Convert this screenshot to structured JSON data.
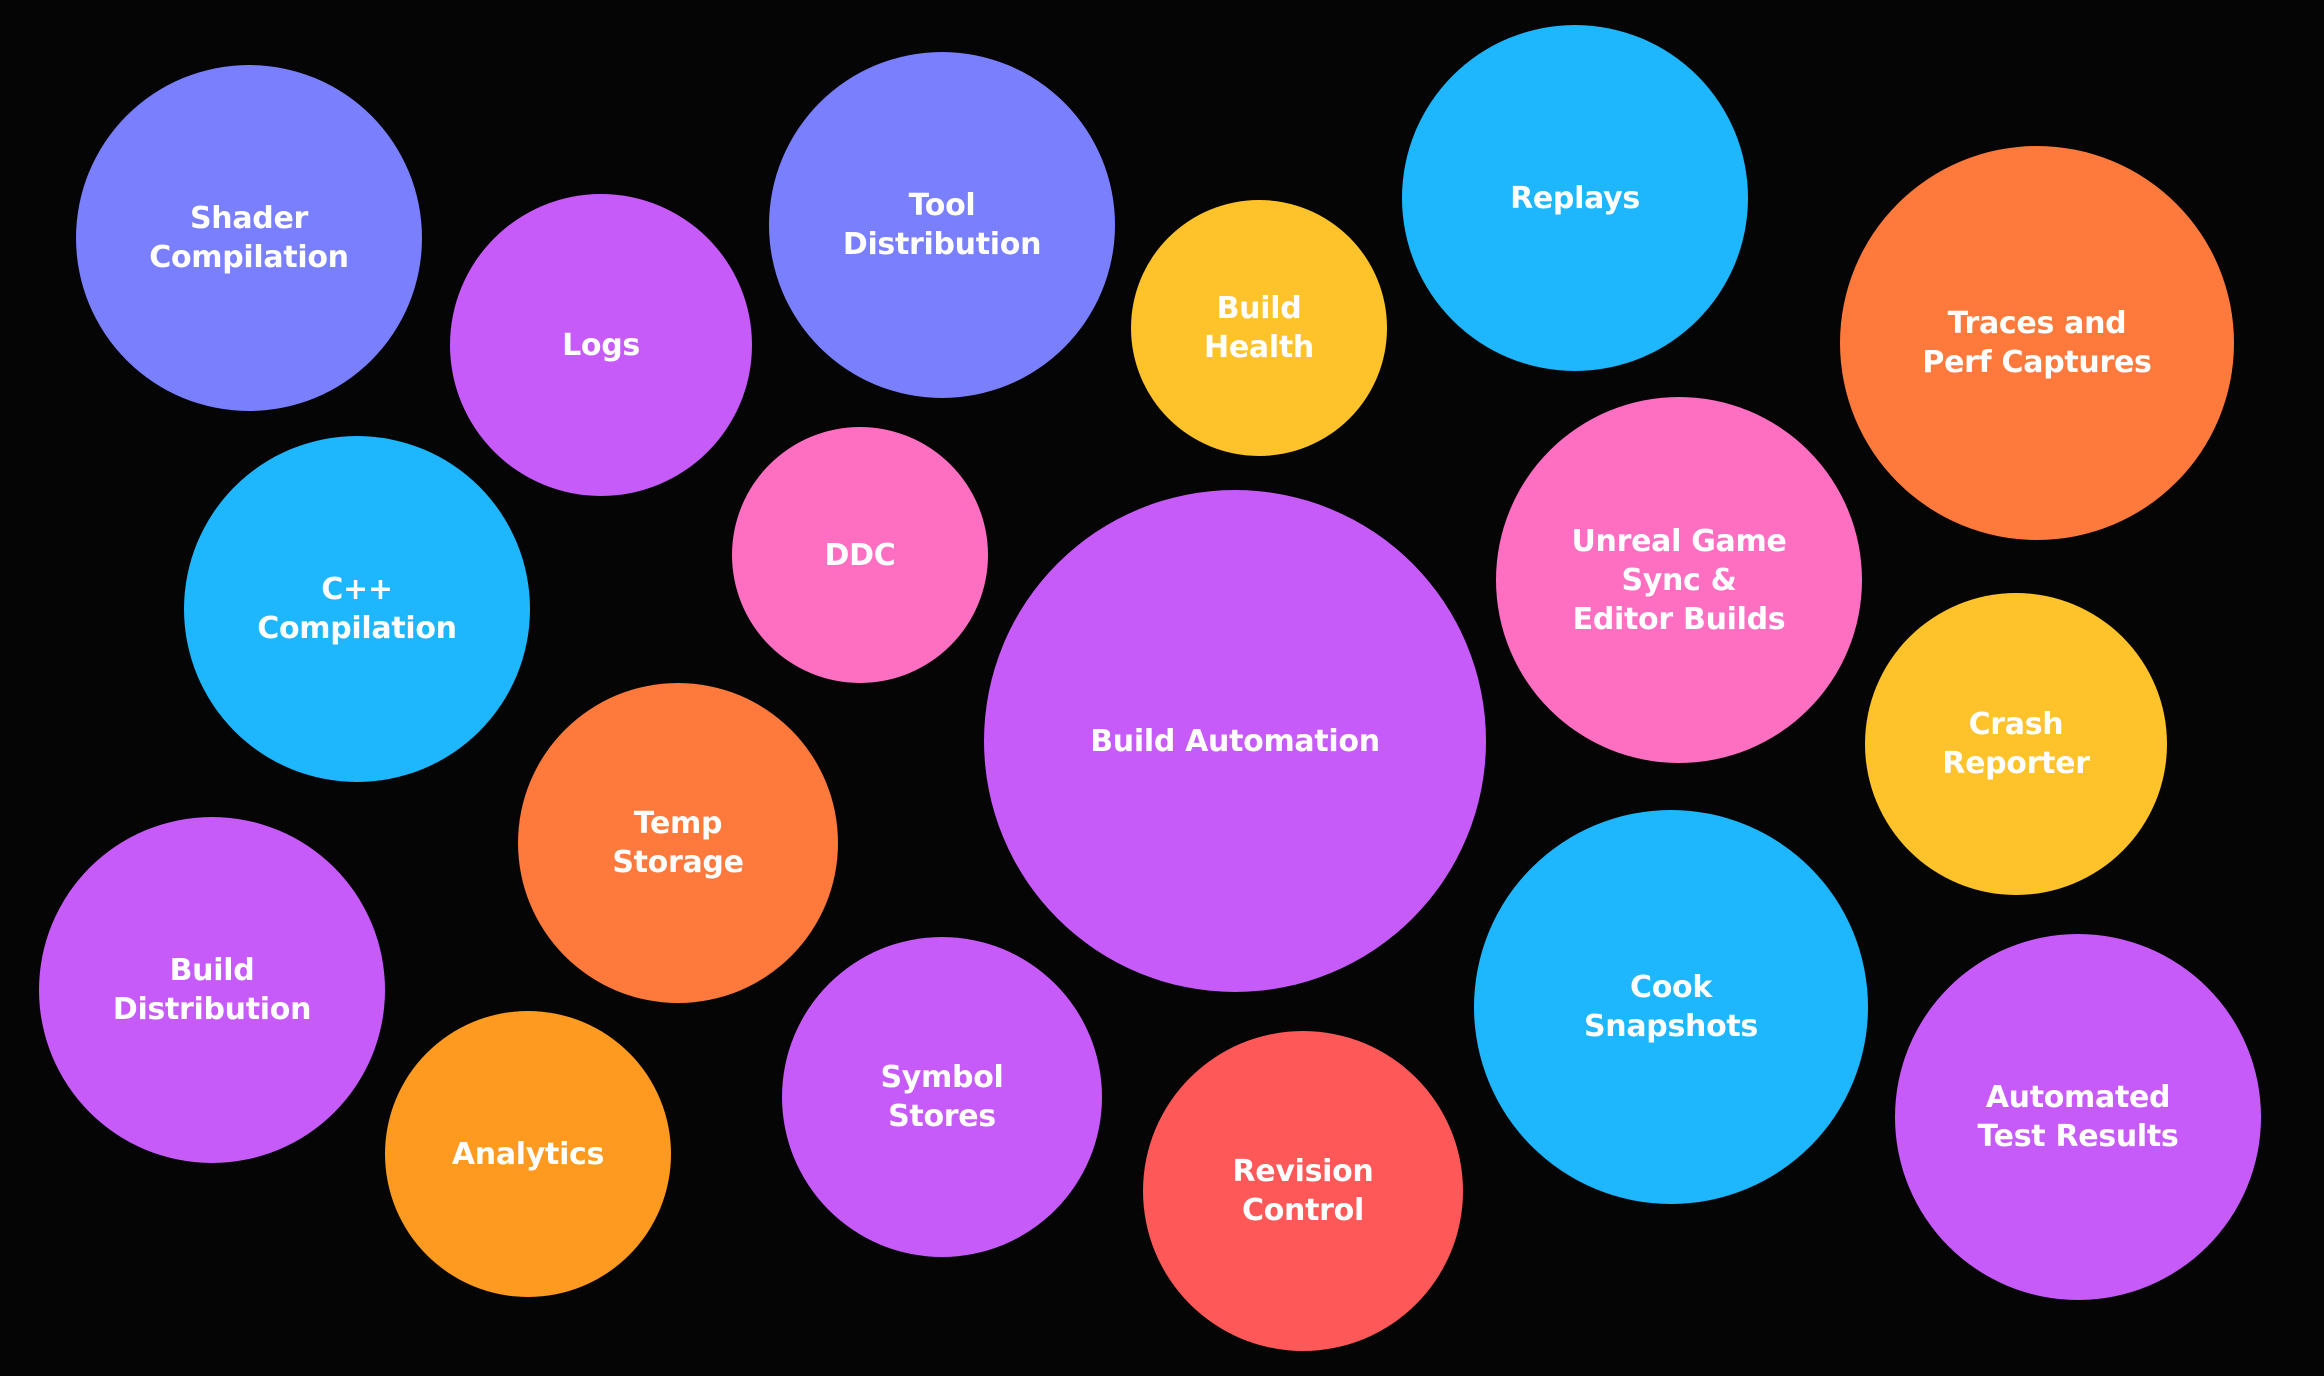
{
  "colors": {
    "background": "#050505",
    "periwinkle": "#7a7ffd",
    "purple": "#c65bfa",
    "blue": "#1eb6fd",
    "yellow": "#fec32b",
    "orange": "#fe7a3c",
    "pink": "#fe6fc2",
    "amber": "#fe9a20",
    "red": "#fe5858",
    "text": "#ffffff"
  },
  "bubbles": [
    {
      "id": "shader-compilation",
      "label": "Shader\nCompilation",
      "color": "#7a7ffd"
    },
    {
      "id": "logs",
      "label": "Logs",
      "color": "#c65bfa"
    },
    {
      "id": "tool-distribution",
      "label": "Tool\nDistribution",
      "color": "#7a7ffd"
    },
    {
      "id": "build-health",
      "label": "Build\nHealth",
      "color": "#fec32b"
    },
    {
      "id": "replays",
      "label": "Replays",
      "color": "#1eb6fd"
    },
    {
      "id": "traces-perf-captures",
      "label": "Traces and\nPerf Captures",
      "color": "#fe7a3c"
    },
    {
      "id": "cpp-compilation",
      "label": "C++\nCompilation",
      "color": "#1eb6fd"
    },
    {
      "id": "ddc",
      "label": "DDC",
      "color": "#fe6fc2"
    },
    {
      "id": "build-automation",
      "label": "Build Automation",
      "color": "#c65bfa"
    },
    {
      "id": "unreal-game-sync",
      "label": "Unreal Game\nSync &\nEditor Builds",
      "color": "#fe6fc2"
    },
    {
      "id": "crash-reporter",
      "label": "Crash\nReporter",
      "color": "#fec32b"
    },
    {
      "id": "temp-storage",
      "label": "Temp\nStorage",
      "color": "#fe7a3c"
    },
    {
      "id": "build-distribution",
      "label": "Build\nDistribution",
      "color": "#c65bfa"
    },
    {
      "id": "analytics",
      "label": "Analytics",
      "color": "#fe9a20"
    },
    {
      "id": "symbol-stores",
      "label": "Symbol\nStores",
      "color": "#c65bfa"
    },
    {
      "id": "revision-control",
      "label": "Revision\nControl",
      "color": "#fe5858"
    },
    {
      "id": "cook-snapshots",
      "label": "Cook\nSnapshots",
      "color": "#1eb6fd"
    },
    {
      "id": "automated-test-results",
      "label": "Automated\nTest Results",
      "color": "#c65bfa"
    }
  ]
}
